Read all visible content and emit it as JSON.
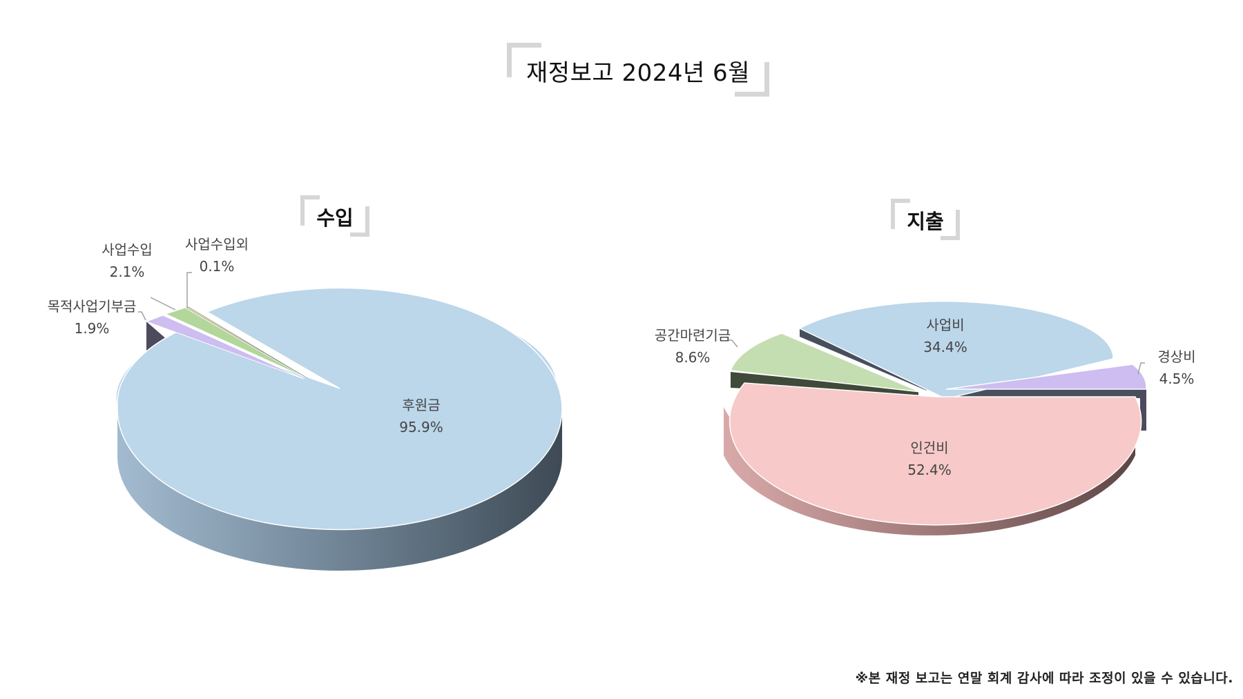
{
  "title": "재정보고 2024년 6월",
  "footnote": "※본 재정 보고는 연말 회계 감사에 따라 조정이 있을 수 있습니다.",
  "chart_data": [
    {
      "type": "pie",
      "title": "수입",
      "slices": [
        {
          "label": "후원금",
          "value": 95.9,
          "value_label": "95.9%",
          "color": "#bcd6ea"
        },
        {
          "label": "목적사업기부금",
          "value": 1.9,
          "value_label": "1.9%",
          "color": "#cdbdf0"
        },
        {
          "label": "사업수입",
          "value": 2.1,
          "value_label": "2.1%",
          "color": "#b3d79b"
        },
        {
          "label": "사업수입외",
          "value": 0.1,
          "value_label": "0.1%",
          "color": "#f0e3b0"
        }
      ]
    },
    {
      "type": "pie",
      "title": "지출",
      "slices": [
        {
          "label": "인건비",
          "value": 52.4,
          "value_label": "52.4%",
          "color": "#f8c9c9"
        },
        {
          "label": "공간마련기금",
          "value": 8.6,
          "value_label": "8.6%",
          "color": "#c5deb1"
        },
        {
          "label": "사업비",
          "value": 34.4,
          "value_label": "34.4%",
          "color": "#bcd6ea"
        },
        {
          "label": "경상비",
          "value": 4.5,
          "value_label": "4.5%",
          "color": "#cdbdf0"
        }
      ]
    }
  ]
}
